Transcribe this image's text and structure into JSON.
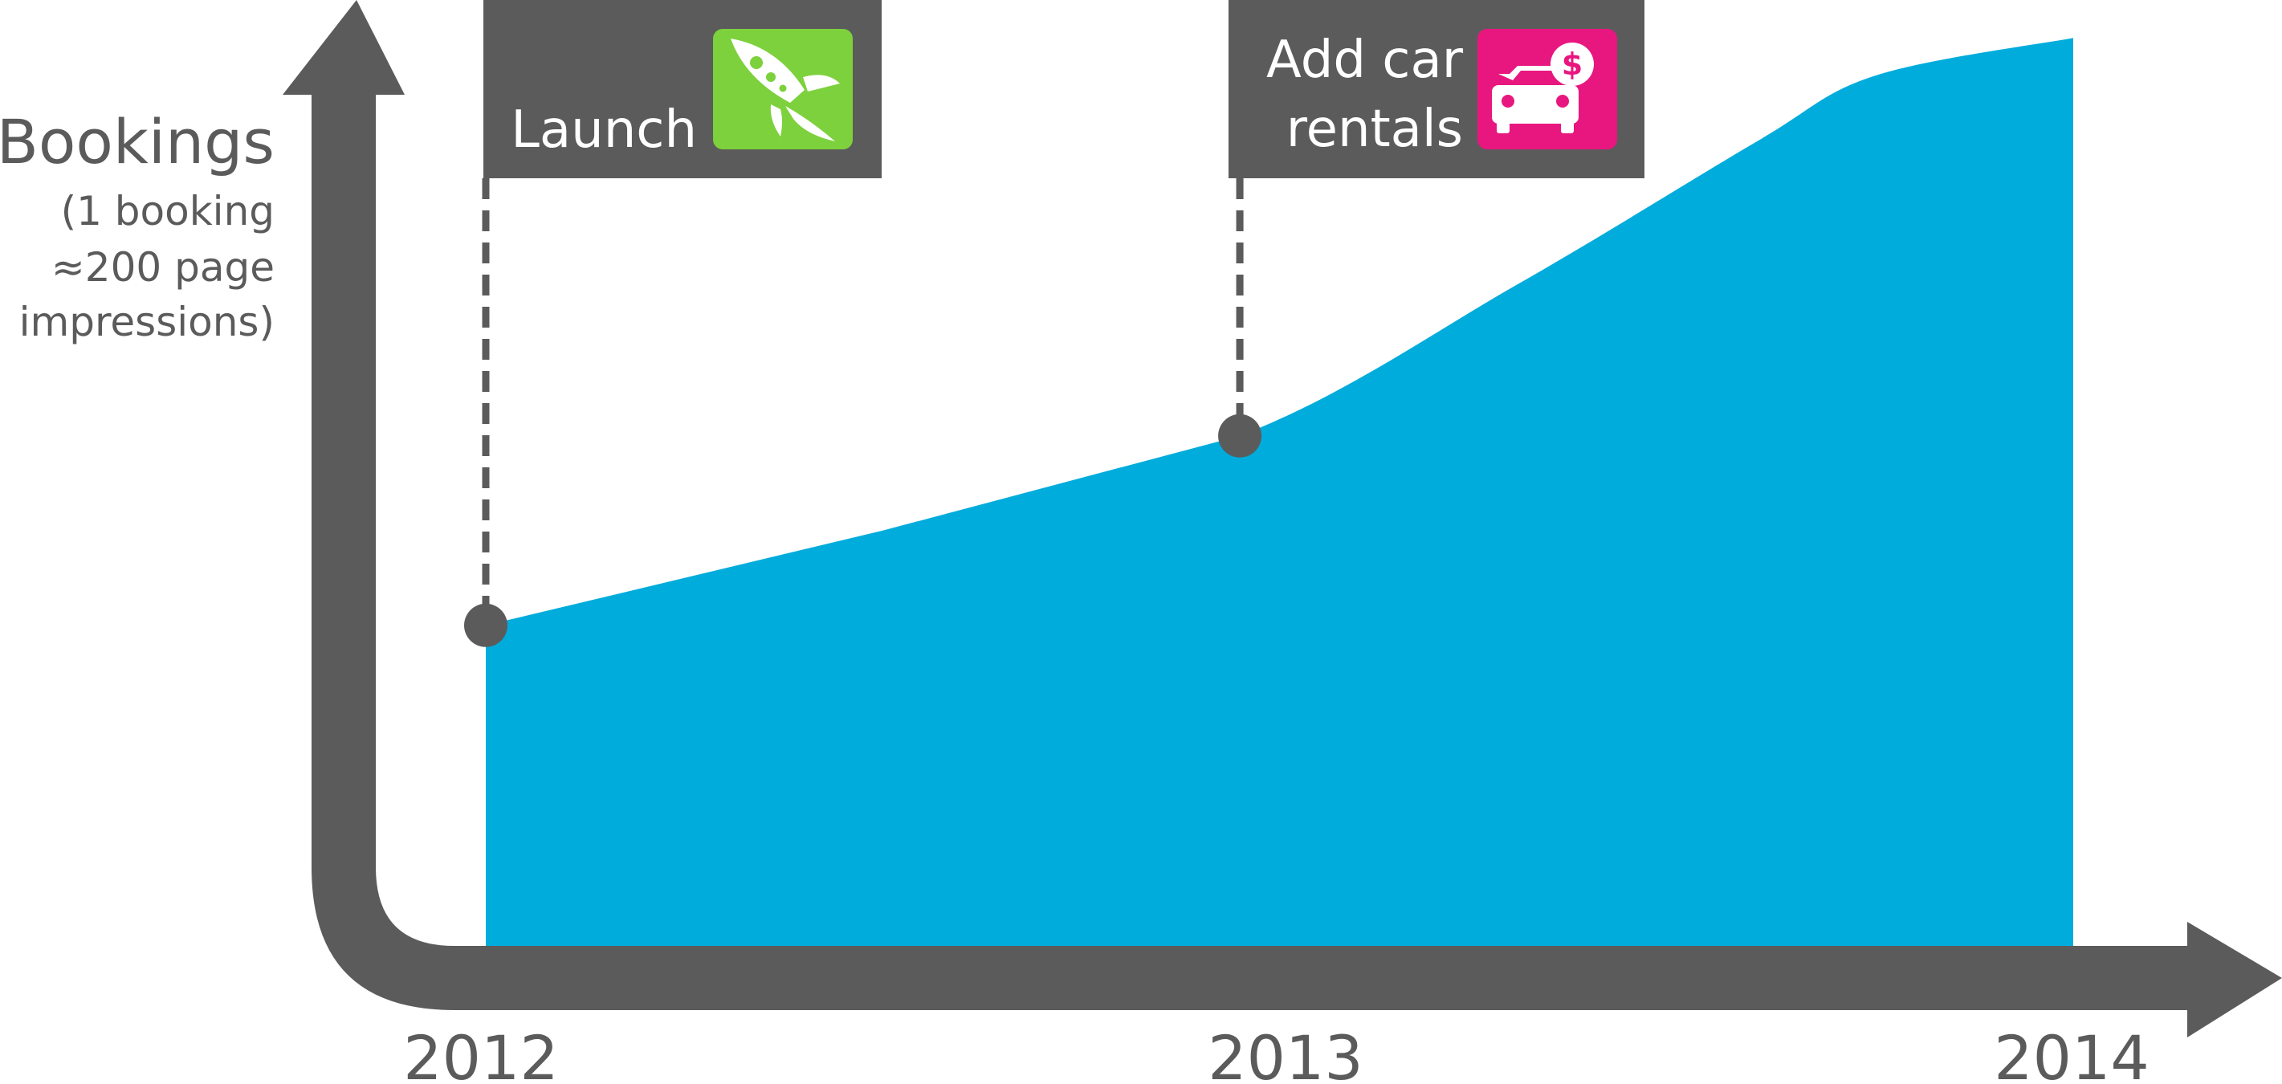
{
  "chart_data": {
    "type": "area",
    "title": "",
    "xlabel": "",
    "ylabel": "Bookings",
    "ylabel_note": [
      "(1 booking",
      "≈200 page",
      "impressions)"
    ],
    "x_ticks": [
      "2012",
      "2013",
      "2014"
    ],
    "xlim": [
      2012,
      2014
    ],
    "ylim": [
      0,
      100
    ],
    "grid": false,
    "series": [
      {
        "x": [
          2012.0,
          2012.5,
          2012.95,
          2013.3,
          2013.6,
          2013.75,
          2014.0
        ],
        "values": [
          34,
          44,
          54,
          70,
          85,
          92,
          96
        ]
      }
    ],
    "milestones": [
      {
        "x": 2012.0,
        "value": 34,
        "lines": [
          "Launch"
        ],
        "icon": "rocket-icon",
        "icon_color": "#7dd13c"
      },
      {
        "x": 2012.95,
        "value": 54,
        "lines": [
          "Add car",
          "rentals"
        ],
        "icon": "car-rental-dollar-icon",
        "icon_color": "#e8177f"
      }
    ],
    "colors": {
      "area": "#00acdc",
      "axis": "#5b5b5b",
      "label_box": "#5b5b5b",
      "text": "#5b5b5b"
    }
  }
}
